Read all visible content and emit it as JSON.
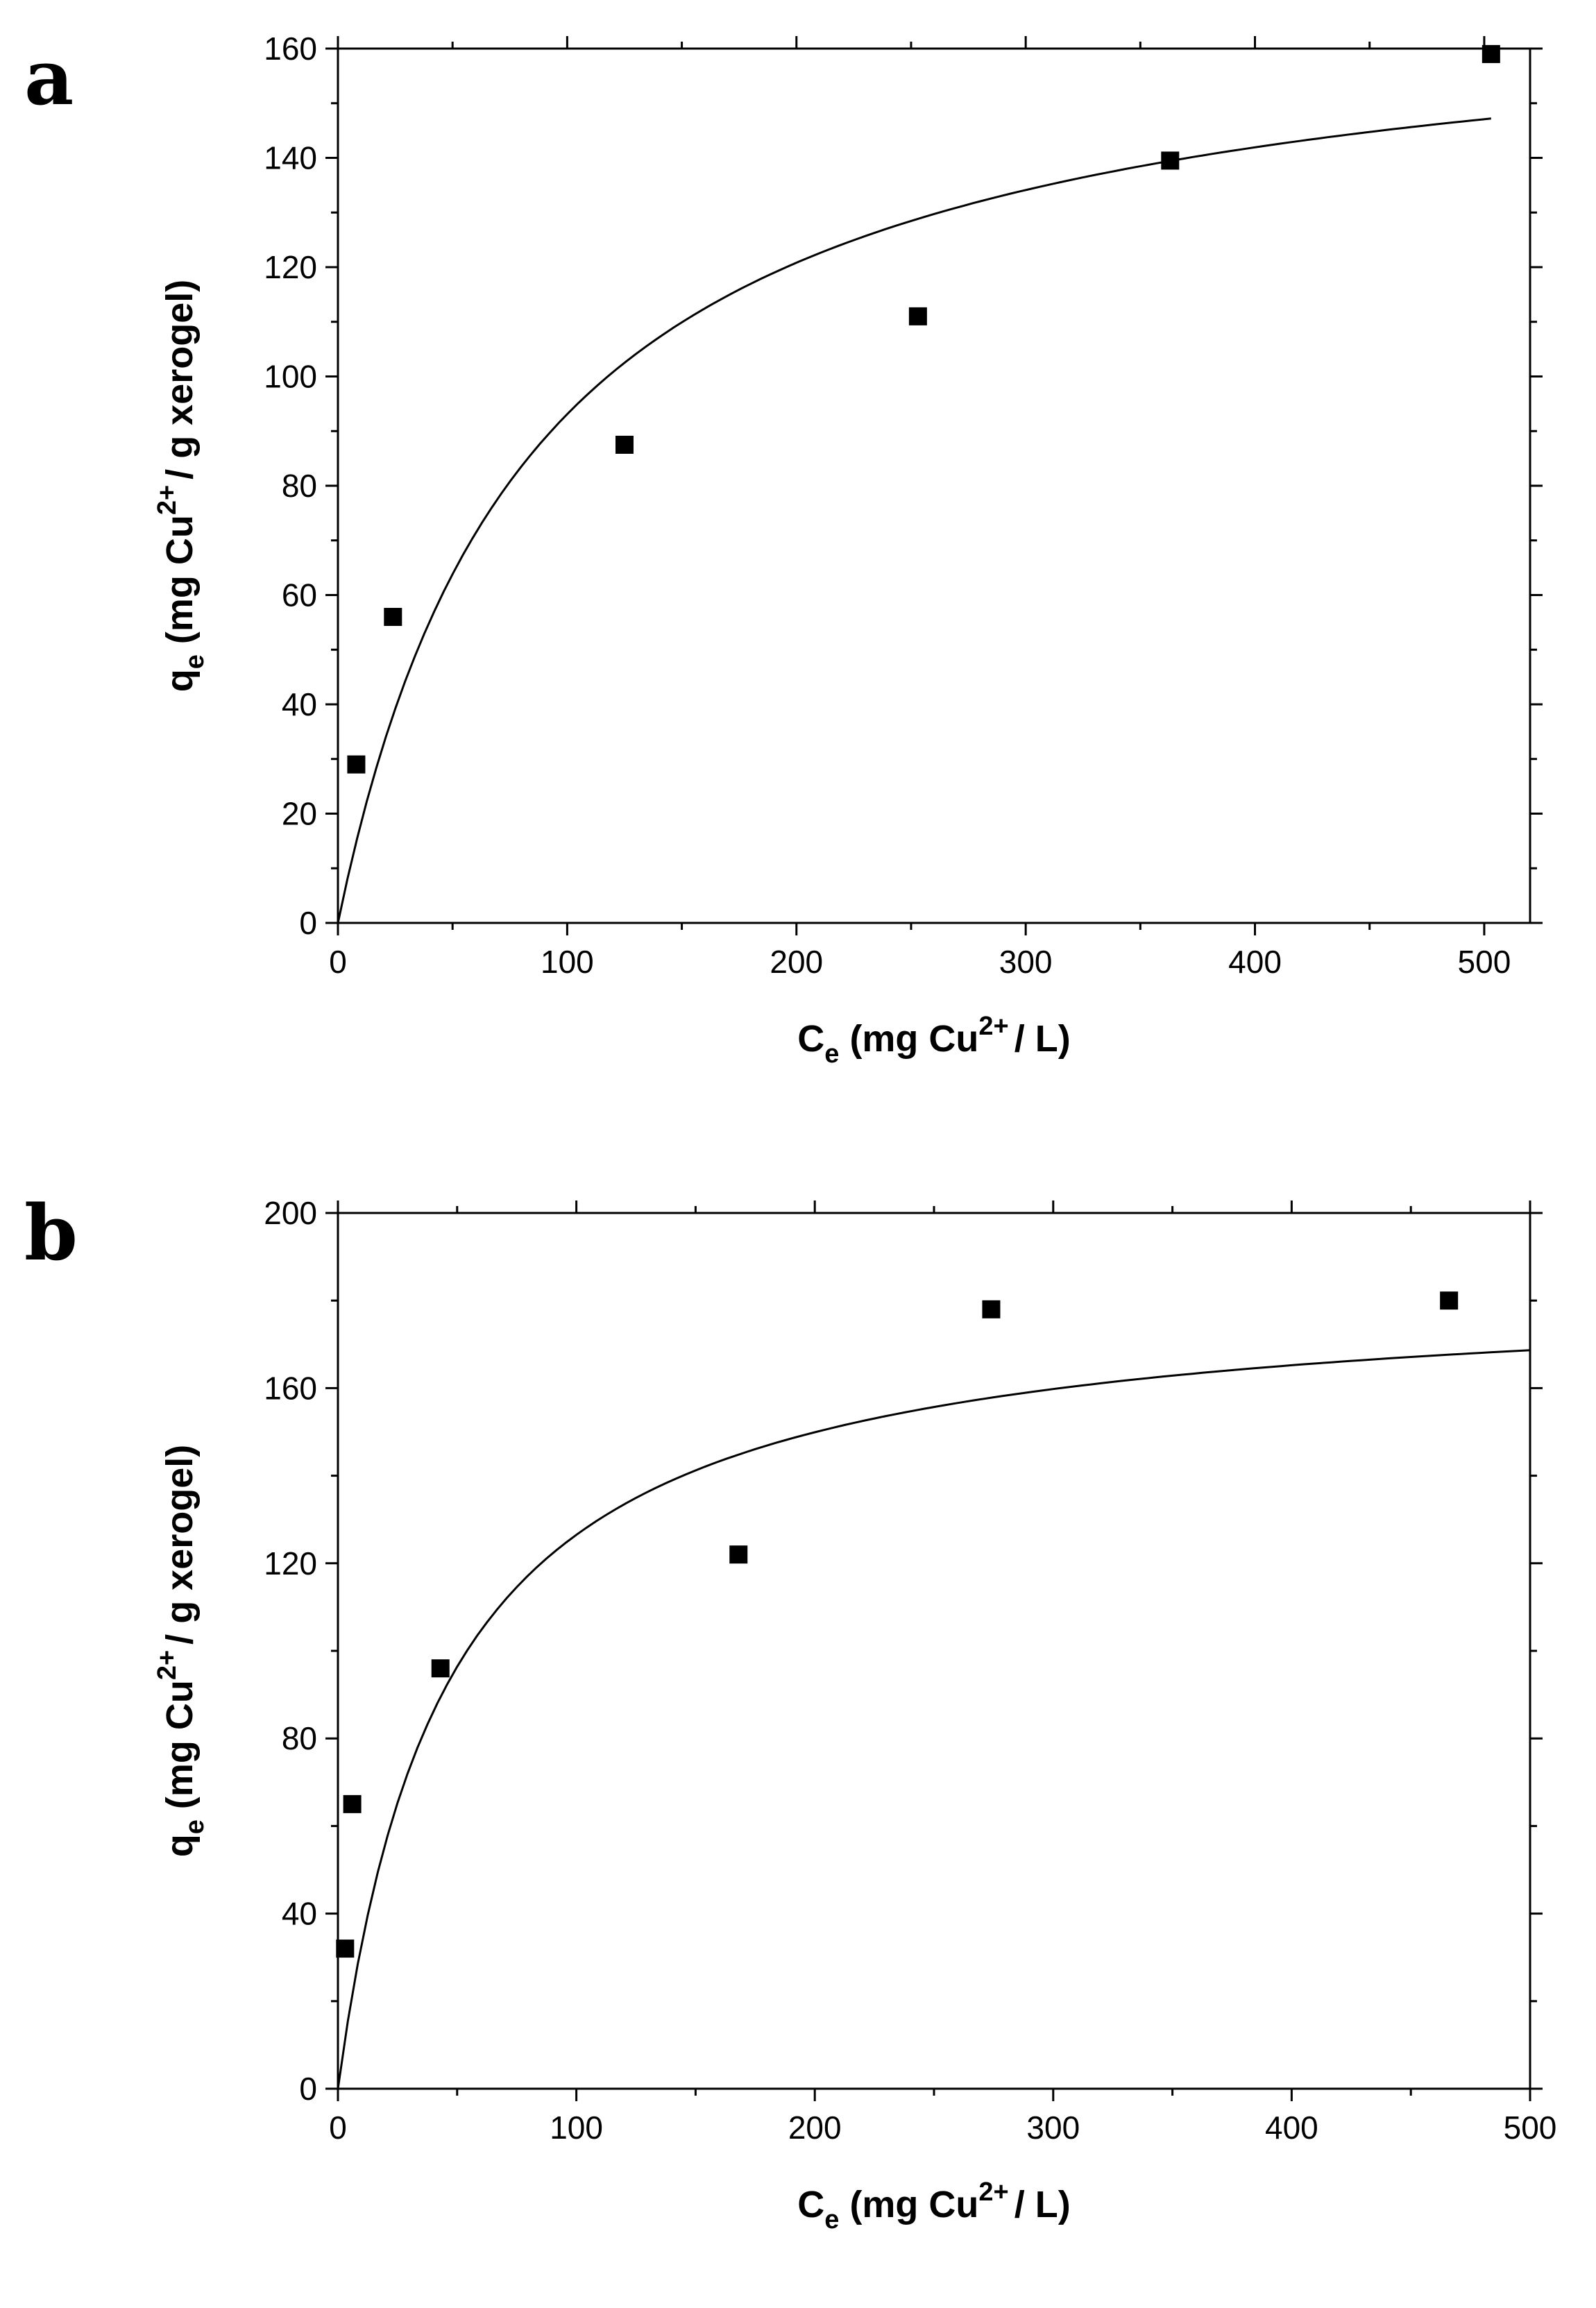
{
  "chart_data": [
    {
      "panel_label": "a",
      "type": "scatter",
      "xlim": [
        0,
        520
      ],
      "ylim": [
        0,
        160
      ],
      "xticks": [
        0,
        100,
        200,
        300,
        400,
        500
      ],
      "x_minor_step": 50,
      "yticks": [
        0,
        20,
        40,
        60,
        80,
        100,
        120,
        140,
        160
      ],
      "y_minor_step": 10,
      "xlabel": {
        "main": "C",
        "sub": "e",
        "pre_sup": "(mg Cu",
        "sup": "2+",
        "post_sup": "/ L)"
      },
      "ylabel": {
        "main": "q",
        "sub": "e",
        "pre_sup": "(mg Cu",
        "sup": "2+",
        "post_sup": "/ g xerogel)"
      },
      "grid": false,
      "series": [
        {
          "kind": "points",
          "x": [
            8,
            24,
            125,
            253,
            363,
            503
          ],
          "y": [
            29,
            56,
            87.5,
            111,
            139.5,
            159
          ]
        },
        {
          "kind": "fit",
          "model": "langmuir",
          "qmax": 172,
          "K": 0.0118,
          "x_range": [
            0,
            503
          ]
        }
      ]
    },
    {
      "panel_label": "b",
      "type": "scatter",
      "xlim": [
        0,
        500
      ],
      "ylim": [
        0,
        200
      ],
      "xticks": [
        0,
        100,
        200,
        300,
        400,
        500
      ],
      "x_minor_step": 50,
      "yticks": [
        0,
        40,
        80,
        120,
        160,
        200
      ],
      "y_minor_step": 20,
      "xlabel": {
        "main": "C",
        "sub": "e",
        "pre_sup": "(mg Cu",
        "sup": "2+",
        "post_sup": "/ L)"
      },
      "ylabel": {
        "main": "q",
        "sub": "e",
        "pre_sup": "(mg Cu",
        "sup": "2+",
        "post_sup": "/ g xerogel)"
      },
      "grid": false,
      "series": [
        {
          "kind": "points",
          "x": [
            3,
            6,
            43,
            168,
            274,
            466
          ],
          "y": [
            32,
            65,
            96,
            122,
            178,
            180
          ]
        },
        {
          "kind": "fit",
          "model": "langmuir",
          "qmax": 184,
          "K": 0.022,
          "x_range": [
            0,
            500
          ]
        }
      ]
    }
  ]
}
